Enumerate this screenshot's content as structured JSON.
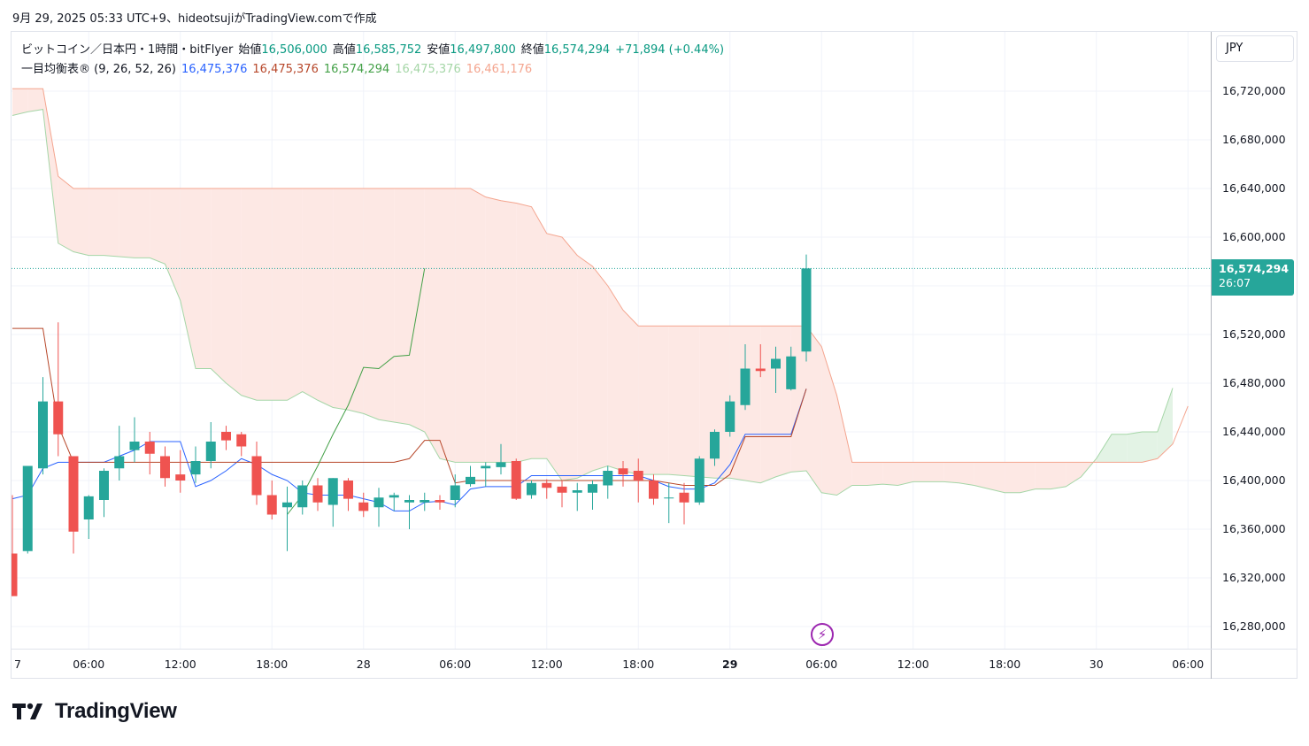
{
  "header": {
    "text": "9月 29, 2025 05:33 UTC+9、hideotsujiがTradingView.comで作成"
  },
  "legend": {
    "symbol": "ビットコイン／日本円・1時間・bitFlyer",
    "open_label": "始値",
    "open": "16,506,000",
    "high_label": "高値",
    "high": "16,585,752",
    "low_label": "安値",
    "low": "16,497,800",
    "close_label": "終値",
    "close": "16,574,294",
    "change": "+71,894 (+0.44%)",
    "indicator": "一目均衡表® (9, 26, 52, 26)",
    "ind_vals": [
      "16,475,376",
      "16,475,376",
      "16,574,294",
      "16,475,376",
      "16,461,176"
    ]
  },
  "currency": "JPY",
  "price_tag": {
    "price": "16,574,294",
    "countdown": "26:07"
  },
  "brand": "TradingView",
  "colors": {
    "up": "#26a69a",
    "down": "#ef5350",
    "tenkan": "#2962ff",
    "kijun": "#b7472a",
    "chikou": "#43a047",
    "spanA": "#a5d6a7",
    "spanB": "#f4a58f",
    "cloud_bear": "#fde8e4",
    "cloud_bull": "#e3f3e5",
    "grid": "#f0f3fa"
  },
  "chart_data": {
    "type": "candlestick",
    "ylim": [
      16260000,
      16740000
    ],
    "y_ticks": [
      16280000,
      16320000,
      16360000,
      16400000,
      16440000,
      16480000,
      16520000,
      16560000,
      16600000,
      16640000,
      16680000,
      16720000
    ],
    "y_tick_labels": [
      "16,280,000",
      "16,320,000",
      "16,360,000",
      "16,400,000",
      "16,440,000",
      "16,480,000",
      "16,520,000",
      "16,560,000",
      "16,600,000",
      "16,640,000",
      "16,680,000",
      "16,720,000"
    ],
    "x_ticks": [
      {
        "i": -1,
        "label": "7"
      },
      {
        "i": 5,
        "label": "06:00"
      },
      {
        "i": 11,
        "label": "12:00"
      },
      {
        "i": 17,
        "label": "18:00"
      },
      {
        "i": 23,
        "label": "28"
      },
      {
        "i": 29,
        "label": "06:00"
      },
      {
        "i": 35,
        "label": "12:00"
      },
      {
        "i": 41,
        "label": "18:00"
      },
      {
        "i": 47,
        "label": "29",
        "bold": true
      },
      {
        "i": 53,
        "label": "06:00"
      },
      {
        "i": 59,
        "label": "12:00"
      },
      {
        "i": 65,
        "label": "18:00"
      },
      {
        "i": 71,
        "label": "30"
      },
      {
        "i": 77,
        "label": "06:00"
      }
    ],
    "candles": [
      [
        16340000,
        16388000,
        16305000,
        16305000
      ],
      [
        16342000,
        16412000,
        16340000,
        16412000
      ],
      [
        16410000,
        16485000,
        16405000,
        16465000
      ],
      [
        16465000,
        16530000,
        16420000,
        16438000
      ],
      [
        16420000,
        16420000,
        16340000,
        16358000
      ],
      [
        16368000,
        16388000,
        16352000,
        16387000
      ],
      [
        16384000,
        16410000,
        16370000,
        16408000
      ],
      [
        16410000,
        16445000,
        16400000,
        16420000
      ],
      [
        16425000,
        16452000,
        16415000,
        16432000
      ],
      [
        16432000,
        16440000,
        16405000,
        16422000
      ],
      [
        16420000,
        16428000,
        16395000,
        16402000
      ],
      [
        16405000,
        16425000,
        16390000,
        16400000
      ],
      [
        16405000,
        16428000,
        16398000,
        16416000
      ],
      [
        16416000,
        16448000,
        16410000,
        16432000
      ],
      [
        16440000,
        16445000,
        16425000,
        16433000
      ],
      [
        16438000,
        16440000,
        16420000,
        16428000
      ],
      [
        16420000,
        16432000,
        16380000,
        16388000
      ],
      [
        16388000,
        16400000,
        16368000,
        16372000
      ],
      [
        16378000,
        16395000,
        16342000,
        16382000
      ],
      [
        16378000,
        16400000,
        16372000,
        16396000
      ],
      [
        16396000,
        16402000,
        16375000,
        16382000
      ],
      [
        16380000,
        16402000,
        16362000,
        16402000
      ],
      [
        16400000,
        16402000,
        16375000,
        16385000
      ],
      [
        16382000,
        16390000,
        16370000,
        16375000
      ],
      [
        16378000,
        16394000,
        16362000,
        16386000
      ],
      [
        16386000,
        16390000,
        16375000,
        16388000
      ],
      [
        16382000,
        16388000,
        16360000,
        16384000
      ],
      [
        16382000,
        16390000,
        16375000,
        16384000
      ],
      [
        16384000,
        16388000,
        16376000,
        16382000
      ],
      [
        16384000,
        16405000,
        16378000,
        16396000
      ],
      [
        16397000,
        16412000,
        16395000,
        16403000
      ],
      [
        16410000,
        16415000,
        16395000,
        16412000
      ],
      [
        16411000,
        16430000,
        16405000,
        16415000
      ],
      [
        16416000,
        16418000,
        16384000,
        16385000
      ],
      [
        16388000,
        16400000,
        16385000,
        16398000
      ],
      [
        16398000,
        16401000,
        16385000,
        16394000
      ],
      [
        16395000,
        16400000,
        16378000,
        16390000
      ],
      [
        16390000,
        16398000,
        16375000,
        16392000
      ],
      [
        16390000,
        16400000,
        16376000,
        16397000
      ],
      [
        16396000,
        16412000,
        16385000,
        16408000
      ],
      [
        16410000,
        16416000,
        16395000,
        16405000
      ],
      [
        16408000,
        16418000,
        16382000,
        16400000
      ],
      [
        16400000,
        16405000,
        16380000,
        16385000
      ],
      [
        16386000,
        16398000,
        16365000,
        16386000
      ],
      [
        16390000,
        16398000,
        16364000,
        16382000
      ],
      [
        16382000,
        16420000,
        16380000,
        16418000
      ],
      [
        16418000,
        16442000,
        16412000,
        16440000
      ],
      [
        16440000,
        16470000,
        16436000,
        16465000
      ],
      [
        16462000,
        16512000,
        16458000,
        16492000
      ],
      [
        16492000,
        16512000,
        16485000,
        16490000
      ],
      [
        16492000,
        16510000,
        16472000,
        16500000
      ],
      [
        16475000,
        16510000,
        16474000,
        16502000
      ],
      [
        16506000,
        16585752,
        16497800,
        16574294
      ]
    ],
    "tenkan": [
      16385000,
      16388000,
      16410000,
      16415000,
      16415000,
      16415000,
      16415000,
      16420000,
      16425000,
      16432000,
      16432000,
      16432000,
      16395000,
      16400000,
      16408000,
      16418000,
      16413000,
      16405000,
      16400000,
      16390000,
      16388000,
      16388000,
      16388000,
      16385000,
      16382000,
      16375000,
      16375000,
      16382000,
      16383000,
      16380000,
      16393000,
      16395000,
      16395000,
      16395000,
      16404000,
      16404000,
      16404000,
      16404000,
      16404000,
      16404000,
      16404000,
      16404000,
      16400000,
      16395000,
      16393000,
      16393000,
      16398000,
      16413000,
      16438000,
      16438000,
      16438000,
      16438000,
      16475376
    ],
    "kijun": [
      16525000,
      16525000,
      16525000,
      16445000,
      16415000,
      16415000,
      16415000,
      16415000,
      16415000,
      16415000,
      16415000,
      16415000,
      16415000,
      16415000,
      16415000,
      16415000,
      16415000,
      16415000,
      16415000,
      16415000,
      16415000,
      16415000,
      16415000,
      16415000,
      16415000,
      16415000,
      16418000,
      16433000,
      16433000,
      16398000,
      16400000,
      16400000,
      16400000,
      16400000,
      16400000,
      16400000,
      16400000,
      16400000,
      16400000,
      16400000,
      16400000,
      16400000,
      16400000,
      16398000,
      16396000,
      16396000,
      16396000,
      16405000,
      16436000,
      16436000,
      16436000,
      16436000,
      16475376
    ],
    "chikou": {
      "start": 18,
      "values": [
        16372000,
        16388000,
        16412000,
        16438000,
        16462000,
        16493000,
        16492000,
        16502000,
        16503000,
        16574294
      ]
    },
    "span_a": {
      "start": 0,
      "values": [
        16700000,
        16703000,
        16705000,
        16595000,
        16588000,
        16585000,
        16585000,
        16584000,
        16583000,
        16583000,
        16578000,
        16548000,
        16492000,
        16492000,
        16480000,
        16470000,
        16466000,
        16466000,
        16466000,
        16473000,
        16466000,
        16460000,
        16458000,
        16455000,
        16450000,
        16448000,
        16446000,
        16440000,
        16418000,
        16415000,
        16415000,
        16415000,
        16415000,
        16415000,
        16418000,
        16418000,
        16400000,
        16402000,
        16408000,
        16412000,
        16408000,
        16405000,
        16405000,
        16405000,
        16404000,
        16403000,
        16402000,
        16402000,
        16400000,
        16398000,
        16403000,
        16407000,
        16408000,
        16390000,
        16388000,
        16396000,
        16396000,
        16397000,
        16396000,
        16399000,
        16399000,
        16399000,
        16398000,
        16396000,
        16393000,
        16390000,
        16390000,
        16393000,
        16393000,
        16395000,
        16403000,
        16418000,
        16438000,
        16438000,
        16440000,
        16440000,
        16476000
      ]
    },
    "span_b": {
      "start": 0,
      "values": [
        16722000,
        16722000,
        16722000,
        16650000,
        16640000,
        16640000,
        16640000,
        16640000,
        16640000,
        16640000,
        16640000,
        16640000,
        16640000,
        16640000,
        16640000,
        16640000,
        16640000,
        16640000,
        16640000,
        16640000,
        16640000,
        16640000,
        16640000,
        16640000,
        16640000,
        16640000,
        16640000,
        16640000,
        16640000,
        16640000,
        16640000,
        16633000,
        16630000,
        16628000,
        16625000,
        16603000,
        16600000,
        16585000,
        16576000,
        16560000,
        16540000,
        16527000,
        16527000,
        16527000,
        16527000,
        16527000,
        16527000,
        16527000,
        16527000,
        16527000,
        16527000,
        16527000,
        16527000,
        16510000,
        16470000,
        16415000,
        16415000,
        16415000,
        16415000,
        16415000,
        16415000,
        16415000,
        16415000,
        16415000,
        16415000,
        16415000,
        16415000,
        16415000,
        16415000,
        16415000,
        16415000,
        16415000,
        16415000,
        16415000,
        16415000,
        16418000,
        16430000,
        16461176
      ]
    },
    "last_price": 16574294
  }
}
